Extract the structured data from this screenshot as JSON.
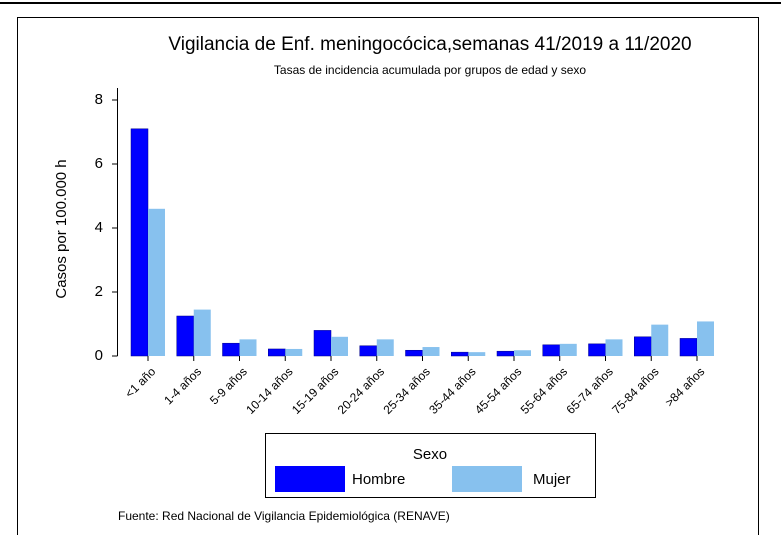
{
  "chart_data": {
    "type": "bar",
    "title": "Vigilancia de Enf. meningocócica,semanas 41/2019 a 11/2020",
    "subtitle": "Tasas de incidencia acumulada por grupos de edad y sexo",
    "y_label": "Casos por 100.000 h",
    "categories": [
      "<1 año",
      "1-4 años",
      "5-9 años",
      "10-14 años",
      "15-19 años",
      "20-24 años",
      "25-34 años",
      "35-44 años",
      "45-54 años",
      "55-64 años",
      "65-74 años",
      "75-84 años",
      ">84 años"
    ],
    "series": [
      {
        "name": "Hombre",
        "color": "#0000ff",
        "values": [
          7.1,
          1.25,
          0.4,
          0.22,
          0.8,
          0.32,
          0.18,
          0.12,
          0.15,
          0.35,
          0.38,
          0.6,
          0.55
        ]
      },
      {
        "name": "Mujer",
        "color": "#87c1ee",
        "values": [
          4.6,
          1.45,
          0.52,
          0.22,
          0.6,
          0.52,
          0.28,
          0.12,
          0.18,
          0.38,
          0.52,
          0.98,
          1.08
        ]
      }
    ],
    "ylim": [
      0,
      8
    ],
    "yticks": [
      0,
      2,
      4,
      6,
      8
    ],
    "legend_title": "Sexo",
    "source": "Fuente: Red Nacional de Vigilancia Epidemiológica (RENAVE)"
  }
}
